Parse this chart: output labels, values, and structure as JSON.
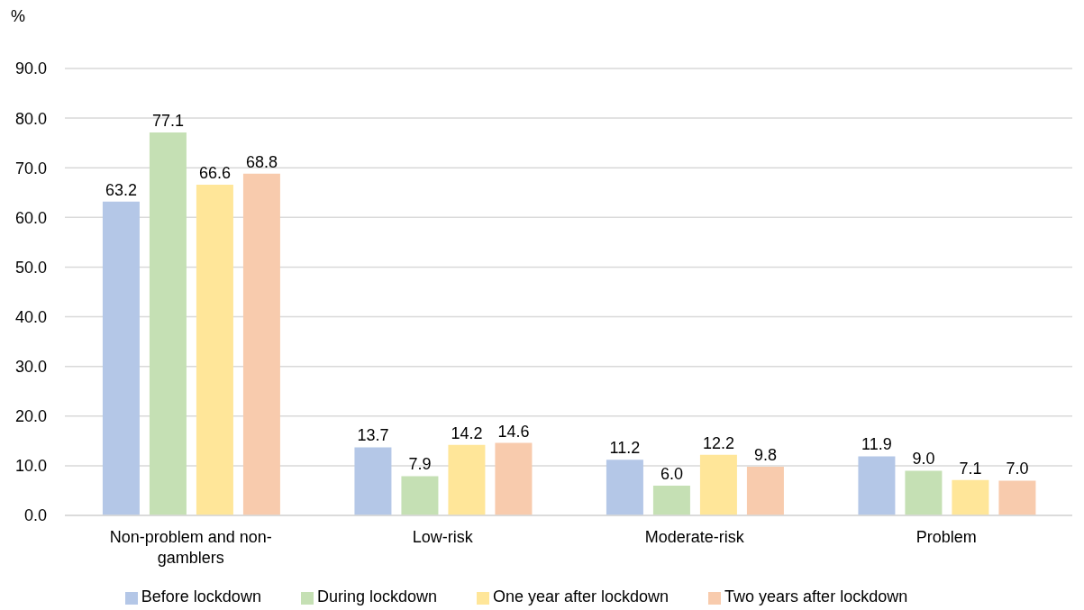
{
  "chart_data": {
    "type": "bar",
    "ylabel": "%",
    "categories": [
      "Non-problem and non-gamblers",
      "Low-risk",
      "Moderate-risk",
      "Problem"
    ],
    "series": [
      {
        "name": "Before lockdown",
        "color": "#b4c7e7",
        "values": [
          63.2,
          13.7,
          11.2,
          11.9
        ],
        "value_labels": [
          "63.2",
          "13.7",
          "11.2",
          "11.9"
        ]
      },
      {
        "name": "During lockdown",
        "color": "#c5e0b4",
        "values": [
          77.1,
          7.9,
          6.0,
          9.0
        ],
        "value_labels": [
          "77.1",
          "7.9",
          "6.0",
          "9.0"
        ]
      },
      {
        "name": "One year after lockdown",
        "color": "#ffe699",
        "values": [
          66.6,
          14.2,
          12.2,
          7.1
        ],
        "value_labels": [
          "66.6",
          "14.2",
          "12.2",
          "7.1"
        ]
      },
      {
        "name": "Two years after lockdown",
        "color": "#f8cbad",
        "values": [
          68.8,
          14.6,
          9.8,
          7.0
        ],
        "value_labels": [
          "68.8",
          "14.6",
          "9.8",
          "7.0"
        ]
      }
    ],
    "ylim": [
      0,
      90
    ],
    "yticks": [
      {
        "value": 0,
        "label": "0.0"
      },
      {
        "value": 10,
        "label": "10.0"
      },
      {
        "value": 20,
        "label": "20.0"
      },
      {
        "value": 30,
        "label": "30.0"
      },
      {
        "value": 40,
        "label": "40.0"
      },
      {
        "value": 50,
        "label": "50.0"
      },
      {
        "value": 60,
        "label": "60.0"
      },
      {
        "value": 70,
        "label": "70.0"
      },
      {
        "value": 80,
        "label": "80.0"
      },
      {
        "value": 90,
        "label": "90.0"
      }
    ],
    "grid": "y",
    "legend": "bottom"
  }
}
